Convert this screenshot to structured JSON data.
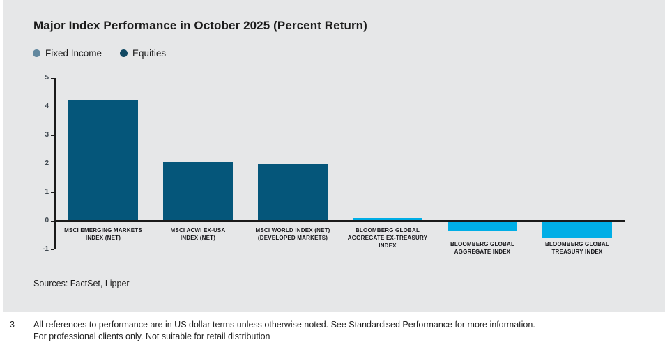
{
  "title": "Major Index Performance in October 2025 (Percent Return)",
  "legend": [
    {
      "label": "Fixed Income",
      "color": "#62889f"
    },
    {
      "label": "Equities",
      "color": "#114963"
    }
  ],
  "sources": "Sources: FactSet, Lipper",
  "footnote": {
    "number": "3",
    "line1": "All references to performance are in US dollar terms unless otherwise noted. See Standardised Performance for more information.",
    "line2": "For professional clients only. Not suitable for retail distribution"
  },
  "chart_data": {
    "type": "bar",
    "title": "Major Index Performance in October 2025 (Percent Return)",
    "categories": [
      "MSCI EMERGING MARKETS INDEX (NET)",
      "MSCI ACWI EX-USA INDEX (NET)",
      "MSCI WORLD INDEX (NET) (DEVELOPED MARKETS)",
      "BLOOMBERG GLOBAL AGGREGATE EX-TREASURY INDEX",
      "BLOOMBERG GLOBAL AGGREGATE INDEX",
      "BLOOMBERG GLOBAL TREASURY INDEX"
    ],
    "category_lines": [
      [
        "MSCI EMERGING MARKETS",
        "INDEX (NET)"
      ],
      [
        "MSCI ACWI EX-USA",
        "INDEX (NET)"
      ],
      [
        "MSCI WORLD INDEX (NET)",
        "(DEVELOPED MARKETS)"
      ],
      [
        "BLOOMBERG GLOBAL",
        "AGGREGATE EX-TREASURY",
        "INDEX"
      ],
      [
        "BLOOMBERG GLOBAL",
        "AGGREGATE INDEX"
      ],
      [
        "BLOOMBERG GLOBAL",
        "TREASURY INDEX"
      ]
    ],
    "values": [
      4.25,
      2.05,
      2.0,
      0.1,
      -0.3,
      -0.55
    ],
    "groups": [
      "equities",
      "equities",
      "equities",
      "fixed_income",
      "fixed_income",
      "fixed_income"
    ],
    "group_colors": {
      "equities": "#05567a",
      "fixed_income": "#00aee6"
    },
    "ylim": [
      -1,
      5
    ],
    "yticks": [
      5,
      4,
      3,
      2,
      1,
      0,
      -1
    ],
    "xlabel": "",
    "ylabel": "",
    "grid": false,
    "legend_position": "top-left"
  }
}
